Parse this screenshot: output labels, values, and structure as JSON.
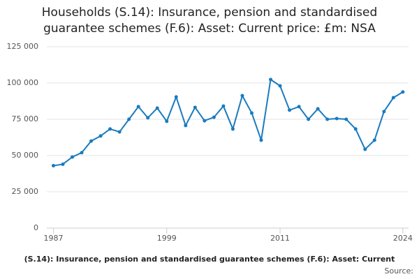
{
  "chart_data": {
    "type": "line",
    "title": [
      "Households (S.14): Insurance, pension and standardised",
      "guarantee schemes (F.6): Asset: Current price: £m: NSA"
    ],
    "x": [
      1987,
      1988,
      1989,
      1990,
      1991,
      1992,
      1993,
      1994,
      1995,
      1996,
      1997,
      1998,
      1999,
      2000,
      2001,
      2002,
      2003,
      2004,
      2005,
      2006,
      2007,
      2008,
      2009,
      2010,
      2011,
      2012,
      2013,
      2014,
      2015,
      2016,
      2017,
      2018,
      2019,
      2020,
      2021,
      2022,
      2023,
      2024
    ],
    "series": [
      {
        "name": "(S.14): Insurance, pension and standardised guarantee schemes (F.6): Asset: Current",
        "color": "#1a7bbf",
        "values": [
          43000,
          44000,
          49000,
          52000,
          60000,
          63500,
          68300,
          66300,
          75000,
          83700,
          76000,
          82700,
          73600,
          90400,
          70700,
          83200,
          74000,
          76400,
          84100,
          68300,
          91300,
          79300,
          60600,
          102400,
          98000,
          81300,
          83700,
          75000,
          82200,
          75000,
          75500,
          75000,
          68300,
          54300,
          60600,
          80300,
          89900,
          93800
        ]
      }
    ],
    "xlim": [
      1986.3,
      2024.6
    ],
    "xticks": [
      1987,
      1999,
      2011,
      2024
    ],
    "ylim": [
      0,
      125000
    ],
    "yticks": [
      0,
      {
        "value": 25000,
        "label": "25 000"
      },
      {
        "value": 50000,
        "label": "50 000"
      },
      {
        "value": 75000,
        "label": "75 000"
      },
      {
        "value": 100000,
        "label": "100 000"
      },
      {
        "value": 125000,
        "label": "125 000"
      }
    ],
    "grid": true,
    "source": "Source:"
  }
}
